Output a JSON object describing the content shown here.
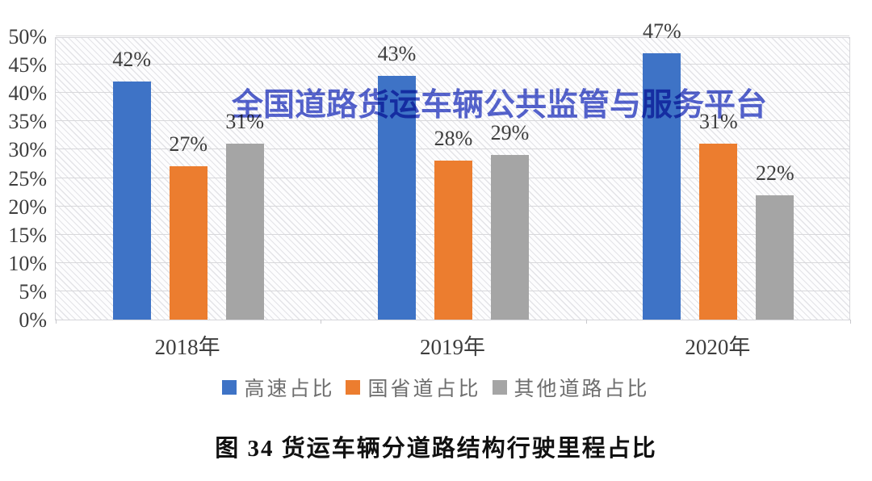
{
  "watermark": {
    "text": "全国道路货运车辆公共监管与服务平台",
    "color": "#3D4EC9"
  },
  "caption": "图 34 货运车辆分道路结构行驶里程占比",
  "chart_data": {
    "type": "bar",
    "title": "图 34 货运车辆分道路结构行驶里程占比",
    "categories": [
      "2018年",
      "2019年",
      "2020年"
    ],
    "series": [
      {
        "name": "高速占比",
        "color": "#3E73C6",
        "values": [
          42,
          43,
          47
        ]
      },
      {
        "name": "国省道占比",
        "color": "#EC7D2F",
        "values": [
          27,
          28,
          31
        ]
      },
      {
        "name": "其他道路占比",
        "color": "#A5A5A5",
        "values": [
          31,
          29,
          22
        ]
      }
    ],
    "xlabel": "",
    "ylabel": "",
    "ylim": [
      0,
      50
    ],
    "ytick_step": 5,
    "ytick_labels": [
      "0%",
      "5%",
      "10%",
      "15%",
      "20%",
      "25%",
      "30%",
      "35%",
      "40%",
      "45%",
      "50%"
    ],
    "data_labels": [
      "42%",
      "27%",
      "31%",
      "43%",
      "28%",
      "29%",
      "47%",
      "31%",
      "22%"
    ],
    "grid": true,
    "legend_position": "bottom",
    "plot_background": "diagonal-hatch"
  },
  "colors": {
    "gridline": "#d8d8db",
    "axis_text": "#3d3d3d",
    "legend_text": "#6e6e6e",
    "plot_border": "#d6d6da"
  }
}
